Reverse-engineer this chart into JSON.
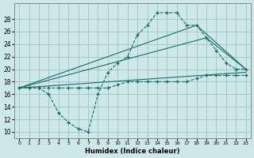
{
  "title": "",
  "xlabel": "Humidex (Indice chaleur)",
  "background_color": "#cce8e8",
  "line_color": "#1a6b6b",
  "xlim": [
    -0.5,
    23.5
  ],
  "ylim": [
    9,
    30.5
  ],
  "xticks": [
    0,
    1,
    2,
    3,
    4,
    5,
    6,
    7,
    8,
    9,
    10,
    11,
    12,
    13,
    14,
    15,
    16,
    17,
    18,
    19,
    20,
    21,
    22,
    23
  ],
  "yticks": [
    10,
    12,
    14,
    16,
    18,
    20,
    22,
    24,
    26,
    28
  ],
  "line1_x": [
    0,
    1,
    2,
    3,
    4,
    5,
    6,
    7,
    8,
    9,
    10,
    11,
    12,
    13,
    14,
    15,
    16,
    17,
    18,
    19,
    20,
    21,
    22,
    23
  ],
  "line1_y": [
    17,
    17,
    17,
    16,
    13,
    11.5,
    10.5,
    10,
    16,
    19.5,
    21,
    22,
    25.5,
    27,
    29,
    29,
    29,
    27,
    27,
    25,
    23,
    21,
    20,
    20
  ],
  "line2_x": [
    0,
    1,
    2,
    3,
    4,
    5,
    6,
    7,
    8,
    9,
    10,
    11,
    12,
    13,
    14,
    15,
    16,
    17,
    18,
    19,
    20,
    21,
    22,
    23
  ],
  "line2_y": [
    17,
    17,
    17,
    17,
    17,
    17,
    17,
    17,
    17,
    17,
    17.5,
    18,
    18,
    18,
    18,
    18,
    18,
    18,
    18.5,
    19,
    19,
    19,
    19,
    19
  ],
  "line3_x": [
    0,
    23
  ],
  "line3_y": [
    17,
    19.5
  ],
  "line4_x": [
    0,
    19,
    23
  ],
  "line4_y": [
    17,
    25,
    20
  ],
  "line5_x": [
    0,
    18,
    23
  ],
  "line5_y": [
    17,
    27,
    20
  ]
}
